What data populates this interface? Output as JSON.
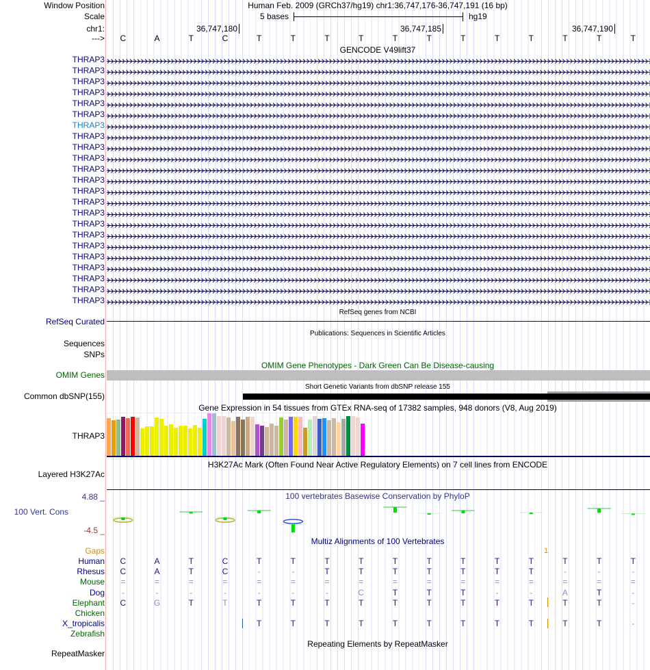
{
  "header": {
    "window_position_label": "Window Position",
    "window_position_value": "Human Feb. 2009 (GRCh37/hg19)   chr1:36,747,176-36,747,191 (16 bp)",
    "scale_label": "Scale",
    "scale_text": "5 bases",
    "scale_assembly": "hg19",
    "chrom_label": "chr1:",
    "ticks": [
      "36,747,180",
      "36,747,185",
      "36,747,190"
    ],
    "strand_label": "--->",
    "sequence": [
      "C",
      "A",
      "T",
      "C",
      "T",
      "T",
      "T",
      "T",
      "T",
      "T",
      "T",
      "T",
      "T",
      "T",
      "T",
      "T"
    ]
  },
  "gencode": {
    "title": "GENCODE V49lift37",
    "gene_label": "THRAP3",
    "row_count": 23,
    "highlight_row": 6
  },
  "refseq": {
    "title": "RefSeq genes from NCBI",
    "label": "RefSeq Curated"
  },
  "publications": {
    "title": "Publications: Sequences in Scientific Articles",
    "labels": [
      "Sequences",
      "SNPs"
    ]
  },
  "omim": {
    "title": "OMIM Gene Phenotypes - Dark Green Can Be Disease-causing",
    "label": "OMIM Genes"
  },
  "dbsnp": {
    "title": "Short Genetic Variants from dbSNP release 155",
    "label": "Common dbSNP(155)"
  },
  "gtex": {
    "title": "Gene Expression in 54 tissues from GTEx RNA-seq of 17382 samples, 948 donors (V8, Aug 2019)",
    "label": "THRAP3",
    "colors": [
      "#FFA54F",
      "#EE9A00",
      "#8FBC8F",
      "#8B1C62",
      "#EE6A50",
      "#FF0000",
      "#CDB79E",
      "#EEEE00",
      "#EEEE00",
      "#EEEE00",
      "#EEEE00",
      "#EEEE00",
      "#EEEE00",
      "#EEEE00",
      "#EEEE00",
      "#EEEE00",
      "#EEEE00",
      "#EEEE00",
      "#EEEE00",
      "#EEEE00",
      "#00CED1",
      "#EE82EE",
      "#9AC0CD",
      "#EED5D2",
      "#EED5D2",
      "#CDB79E",
      "#EEC591",
      "#8B7355",
      "#8B7355",
      "#CDAA7D",
      "#EED5D2",
      "#B452CD",
      "#7A378B",
      "#CDB79E",
      "#CDB79E",
      "#CDB79E",
      "#9ACD32",
      "#CDB79E",
      "#7A67EE",
      "#FFD700",
      "#FFB6C1",
      "#CD9B1D",
      "#B4EEB4",
      "#D9D9D9",
      "#3A5FCD",
      "#1E90FF",
      "#CDB79E",
      "#CDB79E",
      "#FFD39B",
      "#A6A6A6",
      "#008B45",
      "#EED5D2",
      "#EED5D2",
      "#FF00FF"
    ],
    "relative_values": [
      166,
      156,
      159,
      171,
      165,
      171,
      168,
      121,
      129,
      129,
      168,
      162,
      132,
      138,
      124,
      132,
      132,
      121,
      135,
      124,
      162,
      186,
      186,
      174,
      174,
      168,
      153,
      171,
      159,
      171,
      171,
      138,
      132,
      126,
      141,
      132,
      168,
      159,
      171,
      171,
      171,
      123,
      159,
      174,
      162,
      165,
      156,
      165,
      147,
      162,
      174,
      174,
      168,
      141
    ],
    "max_value": 186
  },
  "h3k27ac": {
    "title": "H3K27Ac Mark (Often Found Near Active Regulatory Elements) on 7 cell lines from ENCODE",
    "label": "Layered H3K27Ac"
  },
  "phylop": {
    "title": "100 vertebrates Basewise Conservation by PhyloP",
    "label": "100 Vert. Cons",
    "ymax_label": "4.88 _",
    "ymin_label": "-4.5 _",
    "values": [
      -0.5,
      null,
      0.3,
      -0.5,
      0.5,
      -1.5,
      null,
      null,
      1.0,
      0.1,
      0.5,
      null,
      0.2,
      null,
      0.8,
      0.05
    ]
  },
  "multiz": {
    "title": "Multiz Alignments of 100 Vertebrates",
    "gaps_label": "Gaps",
    "gap_count": "1",
    "species": [
      {
        "name": "Human",
        "color": "#000080",
        "seq": [
          "C",
          "A",
          "T",
          "C",
          "T",
          "T",
          "T",
          "T",
          "T",
          "T",
          "T",
          "T",
          "T",
          "T",
          "T",
          "T"
        ]
      },
      {
        "name": "Rhesus",
        "color": "#000080",
        "seq": [
          "C",
          "A",
          "T",
          "C",
          "-",
          "-",
          "T",
          "T",
          "T",
          "T",
          "T",
          "T",
          "T",
          "-",
          "-",
          "-"
        ]
      },
      {
        "name": "Mouse",
        "color": "#006400",
        "seq": [
          "=",
          "=",
          "=",
          "=",
          "=",
          "=",
          "=",
          "=",
          "=",
          "=",
          "=",
          "=",
          "=",
          "=",
          "=",
          "="
        ]
      },
      {
        "name": "Dog",
        "color": "#000080",
        "seq": [
          "-",
          "-",
          "-",
          "-",
          "-",
          "-",
          "-",
          "C",
          "T",
          "T",
          "T",
          "-",
          "-",
          "A",
          "T",
          "-"
        ]
      },
      {
        "name": "Elephant",
        "color": "#006400",
        "seq": [
          "C",
          "G",
          "T",
          "T",
          "T",
          "T",
          "T",
          "T",
          "T",
          "T",
          "T",
          "T",
          "T",
          "T",
          "T",
          "-"
        ]
      },
      {
        "name": "Chicken",
        "color": "#006400",
        "seq": [
          "",
          "",
          "",
          "",
          "",
          "",
          "",
          "",
          "",
          "",
          "",
          "",
          "",
          "",
          "",
          ""
        ]
      },
      {
        "name": "X_tropicalis",
        "color": "#000080",
        "seq": [
          "",
          "",
          "",
          "",
          "T",
          "T",
          "T",
          "T",
          "T",
          "T",
          "T",
          "T",
          "T",
          "T",
          "T",
          "-"
        ]
      },
      {
        "name": "Zebrafish",
        "color": "#006400",
        "seq": [
          "",
          "",
          "",
          "",
          "",
          "",
          "",
          "",
          "",
          "",
          "",
          "",
          "",
          "",
          "",
          ""
        ]
      }
    ]
  },
  "repeatmasker": {
    "title": "Repeating Elements by RepeatMasker",
    "label": "RepeatMasker"
  }
}
